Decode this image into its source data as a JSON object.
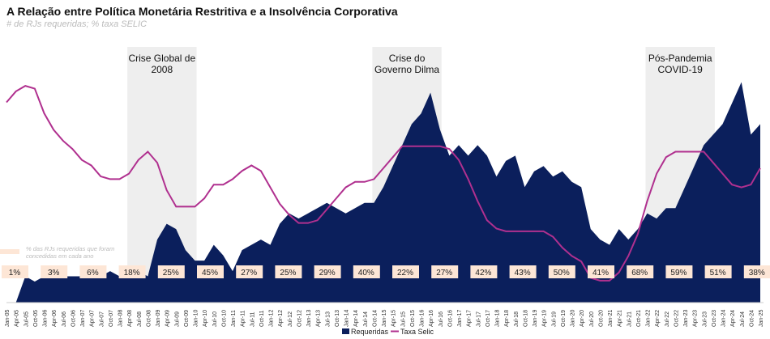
{
  "title": "A Relação entre Política Monetária Restritiva e a Insolvência Corporativa",
  "subtitle": "# de RJs requeridas; % taxa SELIC",
  "chart_data": {
    "type": "area+line",
    "title": "A Relação entre Política Monetária Restritiva e a Insolvência Corporativa",
    "subtitle": "# de RJs requeridas; % taxa SELIC",
    "x_ticks": [
      "Jan-05",
      "Apr-05",
      "Jul-05",
      "Oct-05",
      "Jan-06",
      "Apr-06",
      "Jul-06",
      "Oct-06",
      "Jan-07",
      "Apr-07",
      "Jul-07",
      "Oct-07",
      "Jan-08",
      "Apr-08",
      "Jul-08",
      "Oct-08",
      "Jan-09",
      "Apr-09",
      "Jul-09",
      "Oct-09",
      "Jan-10",
      "Apr-10",
      "Jul-10",
      "Oct-10",
      "Jan-11",
      "Apr-11",
      "Jul-11",
      "Oct-11",
      "Jan-12",
      "Apr-12",
      "Jul-12",
      "Oct-12",
      "Jan-13",
      "Apr-13",
      "Jul-13",
      "Oct-13",
      "Jan-14",
      "Apr-14",
      "Jul-14",
      "Oct-14",
      "Jan-15",
      "Apr-15",
      "Jul-15",
      "Oct-15",
      "Jan-16",
      "Apr-16",
      "Jul-16",
      "Oct-16",
      "Jan-17",
      "Apr-17",
      "Jul-17",
      "Oct-17",
      "Jan-18",
      "Apr-18",
      "Jul-18",
      "Oct-18",
      "Jan-19",
      "Apr-19",
      "Jul-19",
      "Oct-19",
      "Jan-20",
      "Apr-20",
      "Jul-20",
      "Oct-20",
      "Jan-21",
      "Apr-21",
      "Jul-21",
      "Oct-21",
      "Jan-22",
      "Apr-22",
      "Jul-22",
      "Oct-22",
      "Jan-23",
      "Apr-23",
      "Jul-23",
      "Oct-23",
      "Jan-24",
      "Apr-24",
      "Jul-24",
      "Oct-24",
      "Jan-25"
    ],
    "series": [
      {
        "name": "Requeridas",
        "type": "area",
        "color": "#0b1f5c",
        "values": [
          0,
          0,
          25,
          20,
          25,
          30,
          25,
          25,
          25,
          25,
          25,
          30,
          25,
          30,
          30,
          25,
          60,
          75,
          70,
          50,
          40,
          40,
          55,
          45,
          30,
          50,
          55,
          60,
          55,
          75,
          85,
          80,
          85,
          90,
          95,
          90,
          85,
          90,
          95,
          95,
          110,
          130,
          150,
          170,
          180,
          200,
          165,
          140,
          150,
          140,
          150,
          140,
          120,
          135,
          140,
          110,
          125,
          130,
          120,
          125,
          115,
          110,
          70,
          60,
          55,
          70,
          60,
          70,
          85,
          80,
          90,
          90,
          110,
          130,
          150,
          160,
          170,
          190,
          210,
          160,
          170
        ]
      },
      {
        "name": "Taxa Selic",
        "type": "line",
        "color": "#b0308f",
        "values": [
          18.25,
          19.25,
          19.75,
          19.5,
          17.25,
          15.75,
          14.75,
          14.0,
          13.0,
          12.5,
          11.5,
          11.25,
          11.25,
          11.75,
          13.0,
          13.75,
          12.75,
          10.25,
          8.75,
          8.75,
          8.75,
          9.5,
          10.75,
          10.75,
          11.25,
          12.0,
          12.5,
          12.0,
          10.5,
          9.0,
          8.0,
          7.25,
          7.25,
          7.5,
          8.5,
          9.5,
          10.5,
          11.0,
          11.0,
          11.25,
          12.25,
          13.25,
          14.25,
          14.25,
          14.25,
          14.25,
          14.25,
          14.0,
          13.0,
          11.25,
          9.25,
          7.5,
          6.75,
          6.5,
          6.5,
          6.5,
          6.5,
          6.5,
          6.0,
          5.0,
          4.25,
          3.75,
          2.25,
          2.0,
          2.0,
          2.75,
          4.25,
          6.25,
          9.25,
          11.75,
          13.25,
          13.75,
          13.75,
          13.75,
          13.75,
          12.75,
          11.75,
          10.75,
          10.5,
          10.75,
          12.25
        ]
      }
    ],
    "annotations": [
      {
        "label": "Crise Global de 2008",
        "from": "Apr-08",
        "to": "Jan-10"
      },
      {
        "label": "Crise do Governo Dilma",
        "from": "Oct-14",
        "to": "Jul-16"
      },
      {
        "label": "Pós-Pandemia COVID-19",
        "from": "Jan-22",
        "to": "Oct-23"
      }
    ],
    "granted_share_note": "% das RJs requeridas que foram concedidas em cada ano",
    "granted_share": [
      {
        "year": "2005",
        "value": "1%"
      },
      {
        "year": "2006",
        "value": "3%"
      },
      {
        "year": "2007",
        "value": "6%"
      },
      {
        "year": "2008",
        "value": "18%"
      },
      {
        "year": "2009",
        "value": "25%"
      },
      {
        "year": "2010",
        "value": "45%"
      },
      {
        "year": "2011",
        "value": "27%"
      },
      {
        "year": "2012",
        "value": "25%"
      },
      {
        "year": "2013",
        "value": "29%"
      },
      {
        "year": "2014",
        "value": "40%"
      },
      {
        "year": "2015",
        "value": "22%"
      },
      {
        "year": "2016",
        "value": "27%"
      },
      {
        "year": "2017",
        "value": "42%"
      },
      {
        "year": "2018",
        "value": "43%"
      },
      {
        "year": "2019",
        "value": "50%"
      },
      {
        "year": "2020",
        "value": "41%"
      },
      {
        "year": "2021",
        "value": "68%"
      },
      {
        "year": "2022",
        "value": "59%"
      },
      {
        "year": "2023",
        "value": "51%"
      },
      {
        "year": "2024",
        "value": "38%"
      }
    ],
    "legend": [
      "Requeridas",
      "Taxa Selic"
    ],
    "legend_position": "bottom",
    "grid": false,
    "ylim_selic": [
      0,
      20
    ],
    "ylim_requeridas": [
      0,
      215
    ],
    "colors": {
      "band": "#eeeeee",
      "box": "#fde6d6"
    }
  }
}
